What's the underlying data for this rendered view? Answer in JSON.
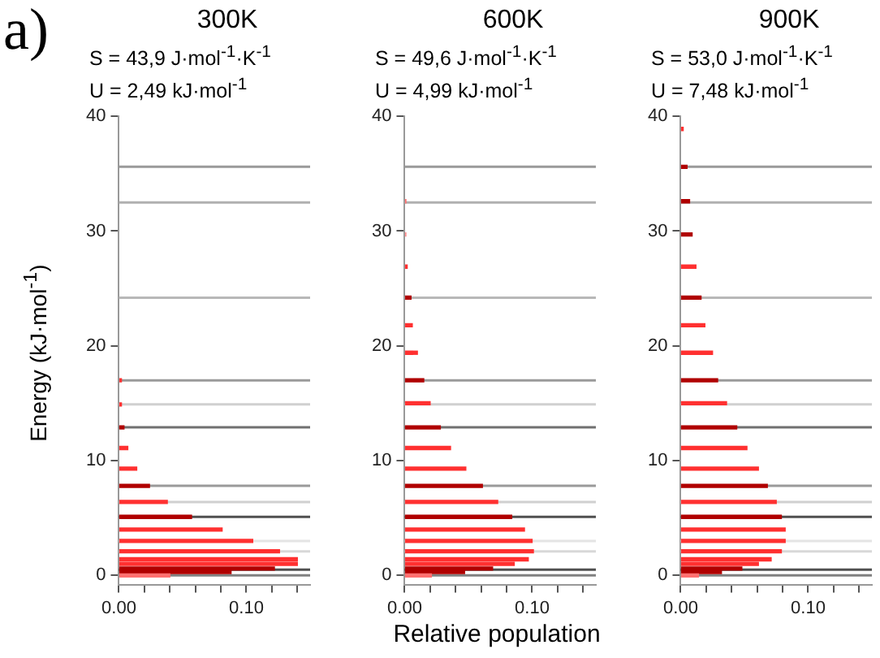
{
  "chart_data": [
    {
      "type": "bar",
      "orientation": "horizontal",
      "title": "300K",
      "subtitle": "S = 43,9 J·mol$^{-1}$·K$^{-1}$",
      "annotations": [
        "U = 2,49 kJ·mol$^{-1}$",
        "a)"
      ],
      "ylabel": "Energy (kJ·mol$^{-1}$)",
      "x": [
        17.0,
        14.9,
        12.9,
        11.1,
        9.3,
        7.8,
        6.4,
        5.1,
        4.0,
        3.0,
        2.1,
        1.4,
        1.0,
        0.6,
        0.3,
        0
      ],
      "values": [
        0.002,
        0.002,
        0.004,
        0.007,
        0.014,
        0.024,
        0.038,
        0.057,
        0.081,
        0.105,
        0.126,
        0.14,
        0.14,
        0.122,
        0.088,
        0.04
      ],
      "colors": [
        "#ff3030",
        "#ff3030",
        "#b00000",
        "#ff3030",
        "#ff3030",
        "#b00000",
        "#ff3030",
        "#b00000",
        "#ff3030",
        "#ff3030",
        "#ff3030",
        "#ff3030",
        "#ff3030",
        "#b00000",
        "#b00000",
        "#ff7070"
      ],
      "xlim": [
        0,
        0.15
      ],
      "xticks": [
        {
          "value": 0,
          "label": "0.00"
        },
        {
          "value": 0.02,
          "label": null
        },
        {
          "value": 0.04,
          "label": null
        },
        {
          "value": 0.06,
          "label": null
        },
        {
          "value": 0.08,
          "label": null
        },
        {
          "value": 0.1,
          "label": "0.10"
        },
        {
          "value": 0.12,
          "label": null
        },
        {
          "value": 0.14,
          "label": null
        }
      ],
      "ylim": [
        -0.8,
        40
      ],
      "yticks": [
        0,
        10,
        20,
        30,
        40
      ],
      "ref_lines": [
        {
          "axis": "y",
          "value": 0,
          "color": "#808080"
        },
        {
          "axis": "y",
          "value": 0.5,
          "color": "#505050"
        },
        {
          "axis": "y",
          "value": 2.1,
          "color": "#d8d8d8"
        },
        {
          "axis": "y",
          "value": 3.0,
          "color": "#e4e4e4"
        },
        {
          "axis": "y",
          "value": 5.1,
          "color": "#505050"
        },
        {
          "axis": "y",
          "value": 6.4,
          "color": "#d0d0d0"
        },
        {
          "axis": "y",
          "value": 7.8,
          "color": "#9a9a9a"
        },
        {
          "axis": "y",
          "value": 12.9,
          "color": "#707070"
        },
        {
          "axis": "y",
          "value": 14.9,
          "color": "#d0d0d0"
        },
        {
          "axis": "y",
          "value": 17.0,
          "color": "#9a9a9a"
        },
        {
          "axis": "y",
          "value": 24.2,
          "color": "#b8b8b8"
        },
        {
          "axis": "y",
          "value": 32.5,
          "color": "#b0b0b0"
        },
        {
          "axis": "y",
          "value": 35.6,
          "color": "#9a9a9a"
        }
      ]
    },
    {
      "type": "bar",
      "orientation": "horizontal",
      "title": "600K",
      "subtitle": "S = 49,6 J·mol$^{-1}$·K$^{-1}$",
      "annotations": [
        "U = 4,99 kJ·mol$^{-1}$"
      ],
      "xlabel": "Relative population",
      "x": [
        32.6,
        29.7,
        26.9,
        24.2,
        21.8,
        19.4,
        17.0,
        15.0,
        12.9,
        11.1,
        9.3,
        7.8,
        6.4,
        5.1,
        4.0,
        3.0,
        2.1,
        1.4,
        1.0,
        0.6,
        0.3,
        0
      ],
      "values": [
        0.001,
        0.001,
        0.002,
        0.005,
        0.006,
        0.01,
        0.015,
        0.02,
        0.028,
        0.036,
        0.048,
        0.061,
        0.073,
        0.084,
        0.094,
        0.1,
        0.101,
        0.097,
        0.086,
        0.069,
        0.047,
        0.021
      ],
      "colors": [
        "#ff7070",
        "#ff9090",
        "#ff3030",
        "#b00000",
        "#ff3030",
        "#ff3030",
        "#b00000",
        "#ff3030",
        "#b00000",
        "#ff3030",
        "#ff3030",
        "#b00000",
        "#ff3030",
        "#b00000",
        "#ff3030",
        "#ff3030",
        "#ff3030",
        "#ff3030",
        "#ff3030",
        "#b00000",
        "#b00000",
        "#ff7070"
      ],
      "xlim": [
        0,
        0.15
      ],
      "xticks": [
        {
          "value": 0,
          "label": "0.00"
        },
        {
          "value": 0.02,
          "label": null
        },
        {
          "value": 0.04,
          "label": null
        },
        {
          "value": 0.06,
          "label": null
        },
        {
          "value": 0.08,
          "label": null
        },
        {
          "value": 0.1,
          "label": "0.10"
        },
        {
          "value": 0.12,
          "label": null
        },
        {
          "value": 0.14,
          "label": null
        }
      ],
      "ylim": [
        -0.8,
        40
      ],
      "yticks": [
        0,
        10,
        20,
        30,
        40
      ],
      "ref_lines": [
        {
          "axis": "y",
          "value": 0,
          "color": "#808080"
        },
        {
          "axis": "y",
          "value": 0.5,
          "color": "#505050"
        },
        {
          "axis": "y",
          "value": 2.1,
          "color": "#d8d8d8"
        },
        {
          "axis": "y",
          "value": 3.0,
          "color": "#e4e4e4"
        },
        {
          "axis": "y",
          "value": 5.1,
          "color": "#505050"
        },
        {
          "axis": "y",
          "value": 6.4,
          "color": "#d0d0d0"
        },
        {
          "axis": "y",
          "value": 7.8,
          "color": "#9a9a9a"
        },
        {
          "axis": "y",
          "value": 12.9,
          "color": "#707070"
        },
        {
          "axis": "y",
          "value": 14.9,
          "color": "#d0d0d0"
        },
        {
          "axis": "y",
          "value": 17.0,
          "color": "#9a9a9a"
        },
        {
          "axis": "y",
          "value": 24.2,
          "color": "#b8b8b8"
        },
        {
          "axis": "y",
          "value": 32.5,
          "color": "#b0b0b0"
        },
        {
          "axis": "y",
          "value": 35.6,
          "color": "#9a9a9a"
        }
      ]
    },
    {
      "type": "bar",
      "orientation": "horizontal",
      "title": "900K",
      "subtitle": "S = 53,0 J·mol$^{-1}$·K$^{-1}$",
      "annotations": [
        "U = 7,48 kJ·mol$^{-1}$"
      ],
      "x": [
        38.9,
        35.6,
        32.6,
        29.7,
        26.9,
        24.2,
        21.8,
        19.4,
        17.0,
        15.0,
        12.9,
        11.1,
        9.3,
        7.8,
        6.4,
        5.1,
        4.0,
        3.0,
        2.1,
        1.4,
        1.0,
        0.6,
        0.3,
        0
      ],
      "values": [
        0.002,
        0.005,
        0.007,
        0.009,
        0.012,
        0.016,
        0.019,
        0.025,
        0.029,
        0.036,
        0.044,
        0.052,
        0.061,
        0.068,
        0.075,
        0.079,
        0.082,
        0.082,
        0.079,
        0.071,
        0.061,
        0.048,
        0.032,
        0.014
      ],
      "colors": [
        "#ff3030",
        "#b00000",
        "#b00000",
        "#b00000",
        "#ff3030",
        "#b00000",
        "#ff3030",
        "#ff3030",
        "#b00000",
        "#ff3030",
        "#b00000",
        "#ff3030",
        "#ff3030",
        "#b00000",
        "#ff3030",
        "#b00000",
        "#ff3030",
        "#ff3030",
        "#ff3030",
        "#ff3030",
        "#ff3030",
        "#b00000",
        "#b00000",
        "#ff7070"
      ],
      "xlim": [
        0,
        0.15
      ],
      "xticks": [
        {
          "value": 0,
          "label": "0.00"
        },
        {
          "value": 0.02,
          "label": null
        },
        {
          "value": 0.04,
          "label": null
        },
        {
          "value": 0.06,
          "label": null
        },
        {
          "value": 0.08,
          "label": null
        },
        {
          "value": 0.1,
          "label": "0.10"
        },
        {
          "value": 0.12,
          "label": null
        },
        {
          "value": 0.14,
          "label": null
        }
      ],
      "ylim": [
        -0.8,
        40
      ],
      "yticks": [
        0,
        10,
        20,
        30,
        40
      ],
      "ref_lines": [
        {
          "axis": "y",
          "value": 0,
          "color": "#808080"
        },
        {
          "axis": "y",
          "value": 0.5,
          "color": "#505050"
        },
        {
          "axis": "y",
          "value": 2.1,
          "color": "#d8d8d8"
        },
        {
          "axis": "y",
          "value": 3.0,
          "color": "#e4e4e4"
        },
        {
          "axis": "y",
          "value": 5.1,
          "color": "#505050"
        },
        {
          "axis": "y",
          "value": 6.4,
          "color": "#d0d0d0"
        },
        {
          "axis": "y",
          "value": 7.8,
          "color": "#9a9a9a"
        },
        {
          "axis": "y",
          "value": 12.9,
          "color": "#707070"
        },
        {
          "axis": "y",
          "value": 14.9,
          "color": "#d0d0d0"
        },
        {
          "axis": "y",
          "value": 17.0,
          "color": "#9a9a9a"
        },
        {
          "axis": "y",
          "value": 24.2,
          "color": "#b8b8b8"
        },
        {
          "axis": "y",
          "value": 32.5,
          "color": "#b0b0b0"
        },
        {
          "axis": "y",
          "value": 35.6,
          "color": "#9a9a9a"
        }
      ]
    }
  ]
}
